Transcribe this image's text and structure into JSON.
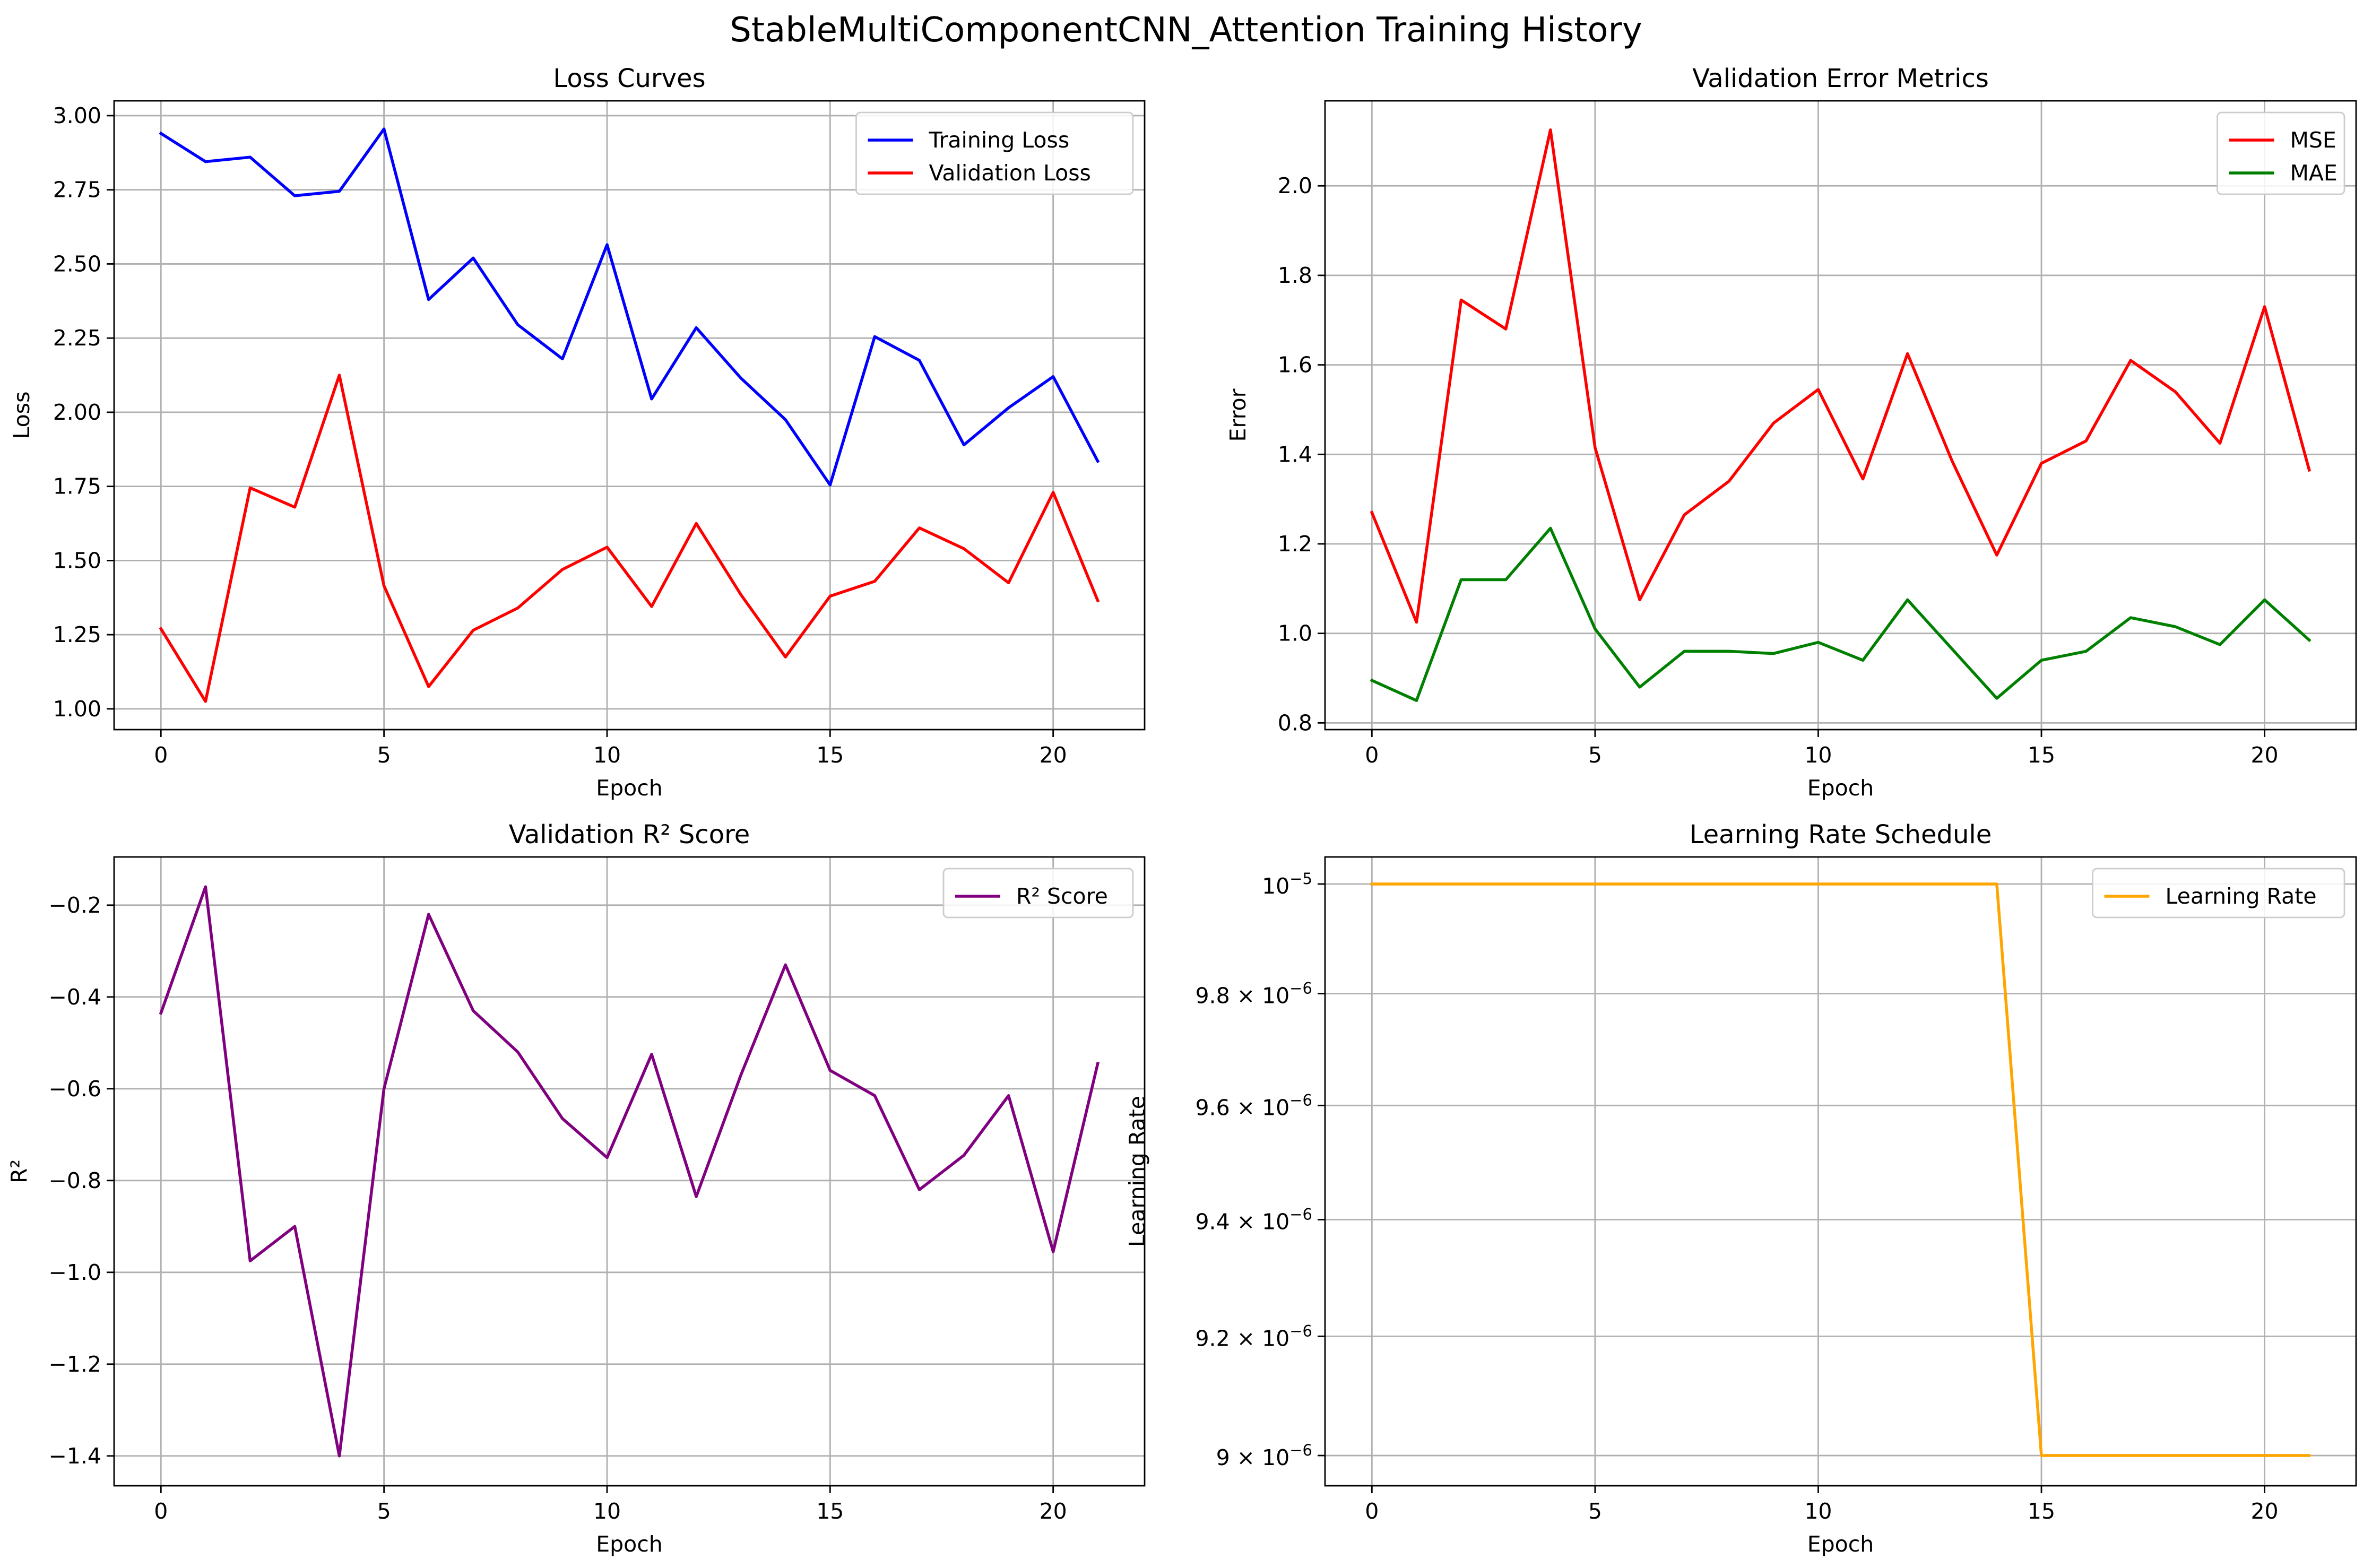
{
  "figure": {
    "title": "StableMultiComponentCNN_Attention Training History"
  },
  "chart_data": [
    {
      "id": "loss",
      "type": "line",
      "title": "Loss Curves",
      "xlabel": "Epoch",
      "ylabel": "Loss",
      "xlim": [
        -1.05,
        22.05
      ],
      "ylim": [
        0.93,
        3.05
      ],
      "xticks": [
        0,
        5,
        10,
        15,
        20
      ],
      "yticks": [
        1.0,
        1.25,
        1.5,
        1.75,
        2.0,
        2.25,
        2.5,
        2.75,
        3.0
      ],
      "ytick_labels": [
        "1.00",
        "1.25",
        "1.50",
        "1.75",
        "2.00",
        "2.25",
        "2.50",
        "2.75",
        "3.00"
      ],
      "grid": true,
      "legend": "upper right",
      "x": [
        0,
        1,
        2,
        3,
        4,
        5,
        6,
        7,
        8,
        9,
        10,
        11,
        12,
        13,
        14,
        15,
        16,
        17,
        18,
        19,
        20,
        21
      ],
      "series": [
        {
          "name": "Training Loss",
          "color": "#0000ff",
          "values": [
            2.94,
            2.845,
            2.86,
            2.73,
            2.745,
            2.955,
            2.38,
            2.52,
            2.295,
            2.18,
            2.565,
            2.045,
            2.285,
            2.115,
            1.975,
            1.755,
            2.255,
            2.175,
            1.89,
            2.015,
            2.12,
            1.835
          ]
        },
        {
          "name": "Validation Loss",
          "color": "#ff0000",
          "values": [
            1.27,
            1.025,
            1.745,
            1.68,
            2.125,
            1.415,
            1.075,
            1.265,
            1.34,
            1.47,
            1.545,
            1.345,
            1.625,
            1.385,
            1.175,
            1.38,
            1.43,
            1.61,
            1.54,
            1.425,
            1.73,
            1.365
          ]
        }
      ]
    },
    {
      "id": "err",
      "type": "line",
      "title": "Validation Error Metrics",
      "xlabel": "Epoch",
      "ylabel": "Error",
      "xlim": [
        -1.05,
        22.05
      ],
      "ylim": [
        0.785,
        2.19
      ],
      "xticks": [
        0,
        5,
        10,
        15,
        20
      ],
      "yticks": [
        0.8,
        1.0,
        1.2,
        1.4,
        1.6,
        1.8,
        2.0
      ],
      "ytick_labels": [
        "0.8",
        "1.0",
        "1.2",
        "1.4",
        "1.6",
        "1.8",
        "2.0"
      ],
      "grid": true,
      "legend": "upper right",
      "x": [
        0,
        1,
        2,
        3,
        4,
        5,
        6,
        7,
        8,
        9,
        10,
        11,
        12,
        13,
        14,
        15,
        16,
        17,
        18,
        19,
        20,
        21
      ],
      "series": [
        {
          "name": "MSE",
          "color": "#ff0000",
          "values": [
            1.27,
            1.025,
            1.745,
            1.68,
            2.125,
            1.415,
            1.075,
            1.265,
            1.34,
            1.47,
            1.545,
            1.345,
            1.625,
            1.385,
            1.175,
            1.38,
            1.43,
            1.61,
            1.54,
            1.425,
            1.73,
            1.365
          ]
        },
        {
          "name": "MAE",
          "color": "#008000",
          "values": [
            0.895,
            0.85,
            1.12,
            1.12,
            1.235,
            1.01,
            0.88,
            0.96,
            0.96,
            0.955,
            0.98,
            0.94,
            1.075,
            0.965,
            0.855,
            0.94,
            0.96,
            1.035,
            1.015,
            0.975,
            1.075,
            0.985
          ]
        }
      ]
    },
    {
      "id": "r2",
      "type": "line",
      "title": "Validation R² Score",
      "xlabel": "Epoch",
      "ylabel": "R²",
      "xlim": [
        -1.05,
        22.05
      ],
      "ylim": [
        -1.465,
        -0.095
      ],
      "xticks": [
        0,
        5,
        10,
        15,
        20
      ],
      "yticks": [
        -1.4,
        -1.2,
        -1.0,
        -0.8,
        -0.6,
        -0.4,
        -0.2
      ],
      "ytick_labels": [
        "−1.4",
        "−1.2",
        "−1.0",
        "−0.8",
        "−0.6",
        "−0.4",
        "−0.2"
      ],
      "grid": true,
      "legend": "upper right",
      "x": [
        0,
        1,
        2,
        3,
        4,
        5,
        6,
        7,
        8,
        9,
        10,
        11,
        12,
        13,
        14,
        15,
        16,
        17,
        18,
        19,
        20,
        21
      ],
      "series": [
        {
          "name": "R² Score",
          "color": "#800080",
          "values": [
            -0.435,
            -0.16,
            -0.975,
            -0.9,
            -1.4,
            -0.6,
            -0.22,
            -0.43,
            -0.52,
            -0.665,
            -0.75,
            -0.525,
            -0.835,
            -0.57,
            -0.33,
            -0.56,
            -0.615,
            -0.82,
            -0.745,
            -0.615,
            -0.955,
            -0.545
          ]
        }
      ]
    },
    {
      "id": "lr",
      "type": "line",
      "title": "Learning Rate Schedule",
      "xlabel": "Epoch",
      "ylabel": "Learning Rate",
      "yscale": "log",
      "xlim": [
        -1.05,
        22.05
      ],
      "ylim": [
        8.95e-06,
        1.005e-05
      ],
      "xticks": [
        0,
        5,
        10,
        15,
        20
      ],
      "yticks": [
        9e-06,
        9.2e-06,
        9.4e-06,
        9.6e-06,
        9.8e-06,
        1e-05
      ],
      "ytick_labels": [
        {
          "base": "9 × 10",
          "exp": "−6"
        },
        {
          "base": "9.2 × 10",
          "exp": "−6"
        },
        {
          "base": "9.4 × 10",
          "exp": "−6"
        },
        {
          "base": "9.6 × 10",
          "exp": "−6"
        },
        {
          "base": "9.8 × 10",
          "exp": "−6"
        },
        {
          "base": "10",
          "exp": "−5"
        }
      ],
      "grid": true,
      "legend": "upper right",
      "x": [
        0,
        1,
        2,
        3,
        4,
        5,
        6,
        7,
        8,
        9,
        10,
        11,
        12,
        13,
        14,
        15,
        16,
        17,
        18,
        19,
        20,
        21
      ],
      "series": [
        {
          "name": "Learning Rate",
          "color": "#ffa500",
          "values": [
            1e-05,
            1e-05,
            1e-05,
            1e-05,
            1e-05,
            1e-05,
            1e-05,
            1e-05,
            1e-05,
            1e-05,
            1e-05,
            1e-05,
            1e-05,
            1e-05,
            1e-05,
            9e-06,
            9e-06,
            9e-06,
            9e-06,
            9e-06,
            9e-06,
            9e-06
          ]
        }
      ]
    }
  ]
}
